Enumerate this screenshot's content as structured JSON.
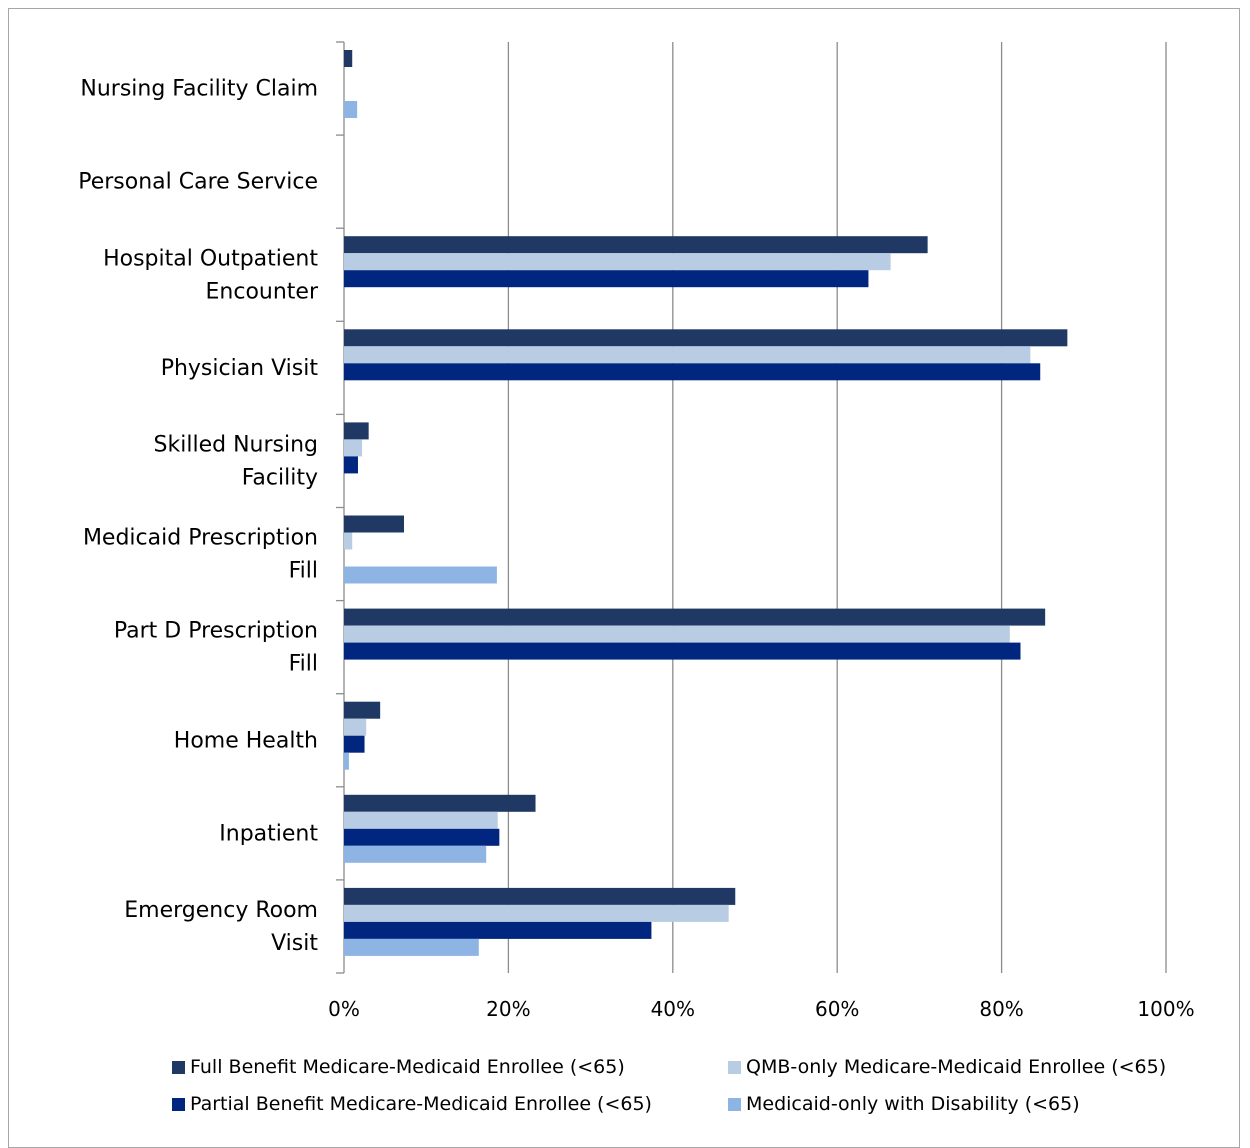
{
  "chart_data": {
    "type": "bar",
    "orientation": "horizontal",
    "categories": [
      "Nursing Facility Claim",
      "Personal Care Service",
      "Hospital Outpatient Encounter",
      "Physician Visit",
      "Skilled Nursing Facility",
      "Medicaid Prescription Fill",
      "Part D Prescription Fill",
      "Home Health",
      "Inpatient",
      "Emergency Room Visit"
    ],
    "series": [
      {
        "name": "Full Benefit Medicare-Medicaid Enrollee (<65)",
        "color": "#1f3864",
        "values": [
          1.0,
          0.0,
          71.0,
          88.0,
          3.0,
          7.3,
          85.3,
          4.4,
          23.3,
          47.6
        ]
      },
      {
        "name": "QMB-only Medicare-Medicaid Enrollee (<65)",
        "color": "#b8cce4",
        "values": [
          0.0,
          0.0,
          66.5,
          83.5,
          2.2,
          1.0,
          81.0,
          2.7,
          18.7,
          46.8
        ]
      },
      {
        "name": "Partial Benefit Medicare-Medicaid Enrollee (<65)",
        "color": "#002680",
        "values": [
          0.0,
          0.0,
          63.8,
          84.7,
          1.7,
          0.0,
          82.3,
          2.5,
          18.9,
          37.4
        ]
      },
      {
        "name": "Medicaid-only with Disability (<65)",
        "color": "#8eb4e3",
        "values": [
          1.6,
          0.0,
          0.0,
          0.0,
          0.0,
          18.6,
          0.0,
          0.6,
          17.3,
          16.4
        ]
      }
    ],
    "xlim": [
      0,
      100
    ],
    "xticks": [
      "0%",
      "20%",
      "40%",
      "60%",
      "80%",
      "100%"
    ],
    "grid": true,
    "legend_position": "bottom",
    "title": "",
    "xlabel": "",
    "ylabel": ""
  }
}
